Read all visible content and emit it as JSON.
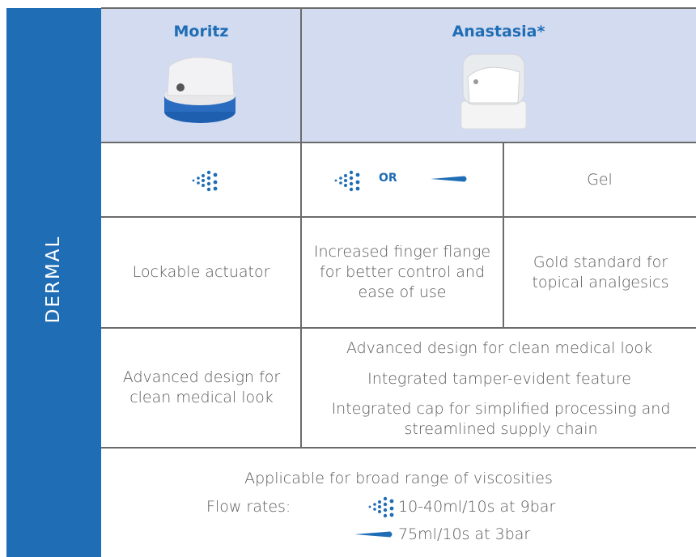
{
  "side_label": "DERMAL",
  "table": {
    "headers": [
      "Moritz",
      "Anastasia*"
    ],
    "spray_row": {
      "connector": "OR",
      "gel": "Gel"
    },
    "feature_row": [
      "Lockable actuator",
      "Increased finger flange for better control and ease of use",
      "Gold standard for topical analgesics"
    ],
    "design_row": {
      "moritz": "Advanced design for clean medical look",
      "anastasia": [
        "Advanced design for clean medical look",
        "Integrated tamper-evident feature",
        "Integrated cap for simplified processing and streamlined supply chain"
      ]
    }
  },
  "footer": {
    "note": "Applicable for broad range of viscosities",
    "flow_label": "Flow rates:",
    "flow_rates": [
      "10-40ml/10s at 9bar",
      "75ml/10s at 3bar"
    ]
  }
}
